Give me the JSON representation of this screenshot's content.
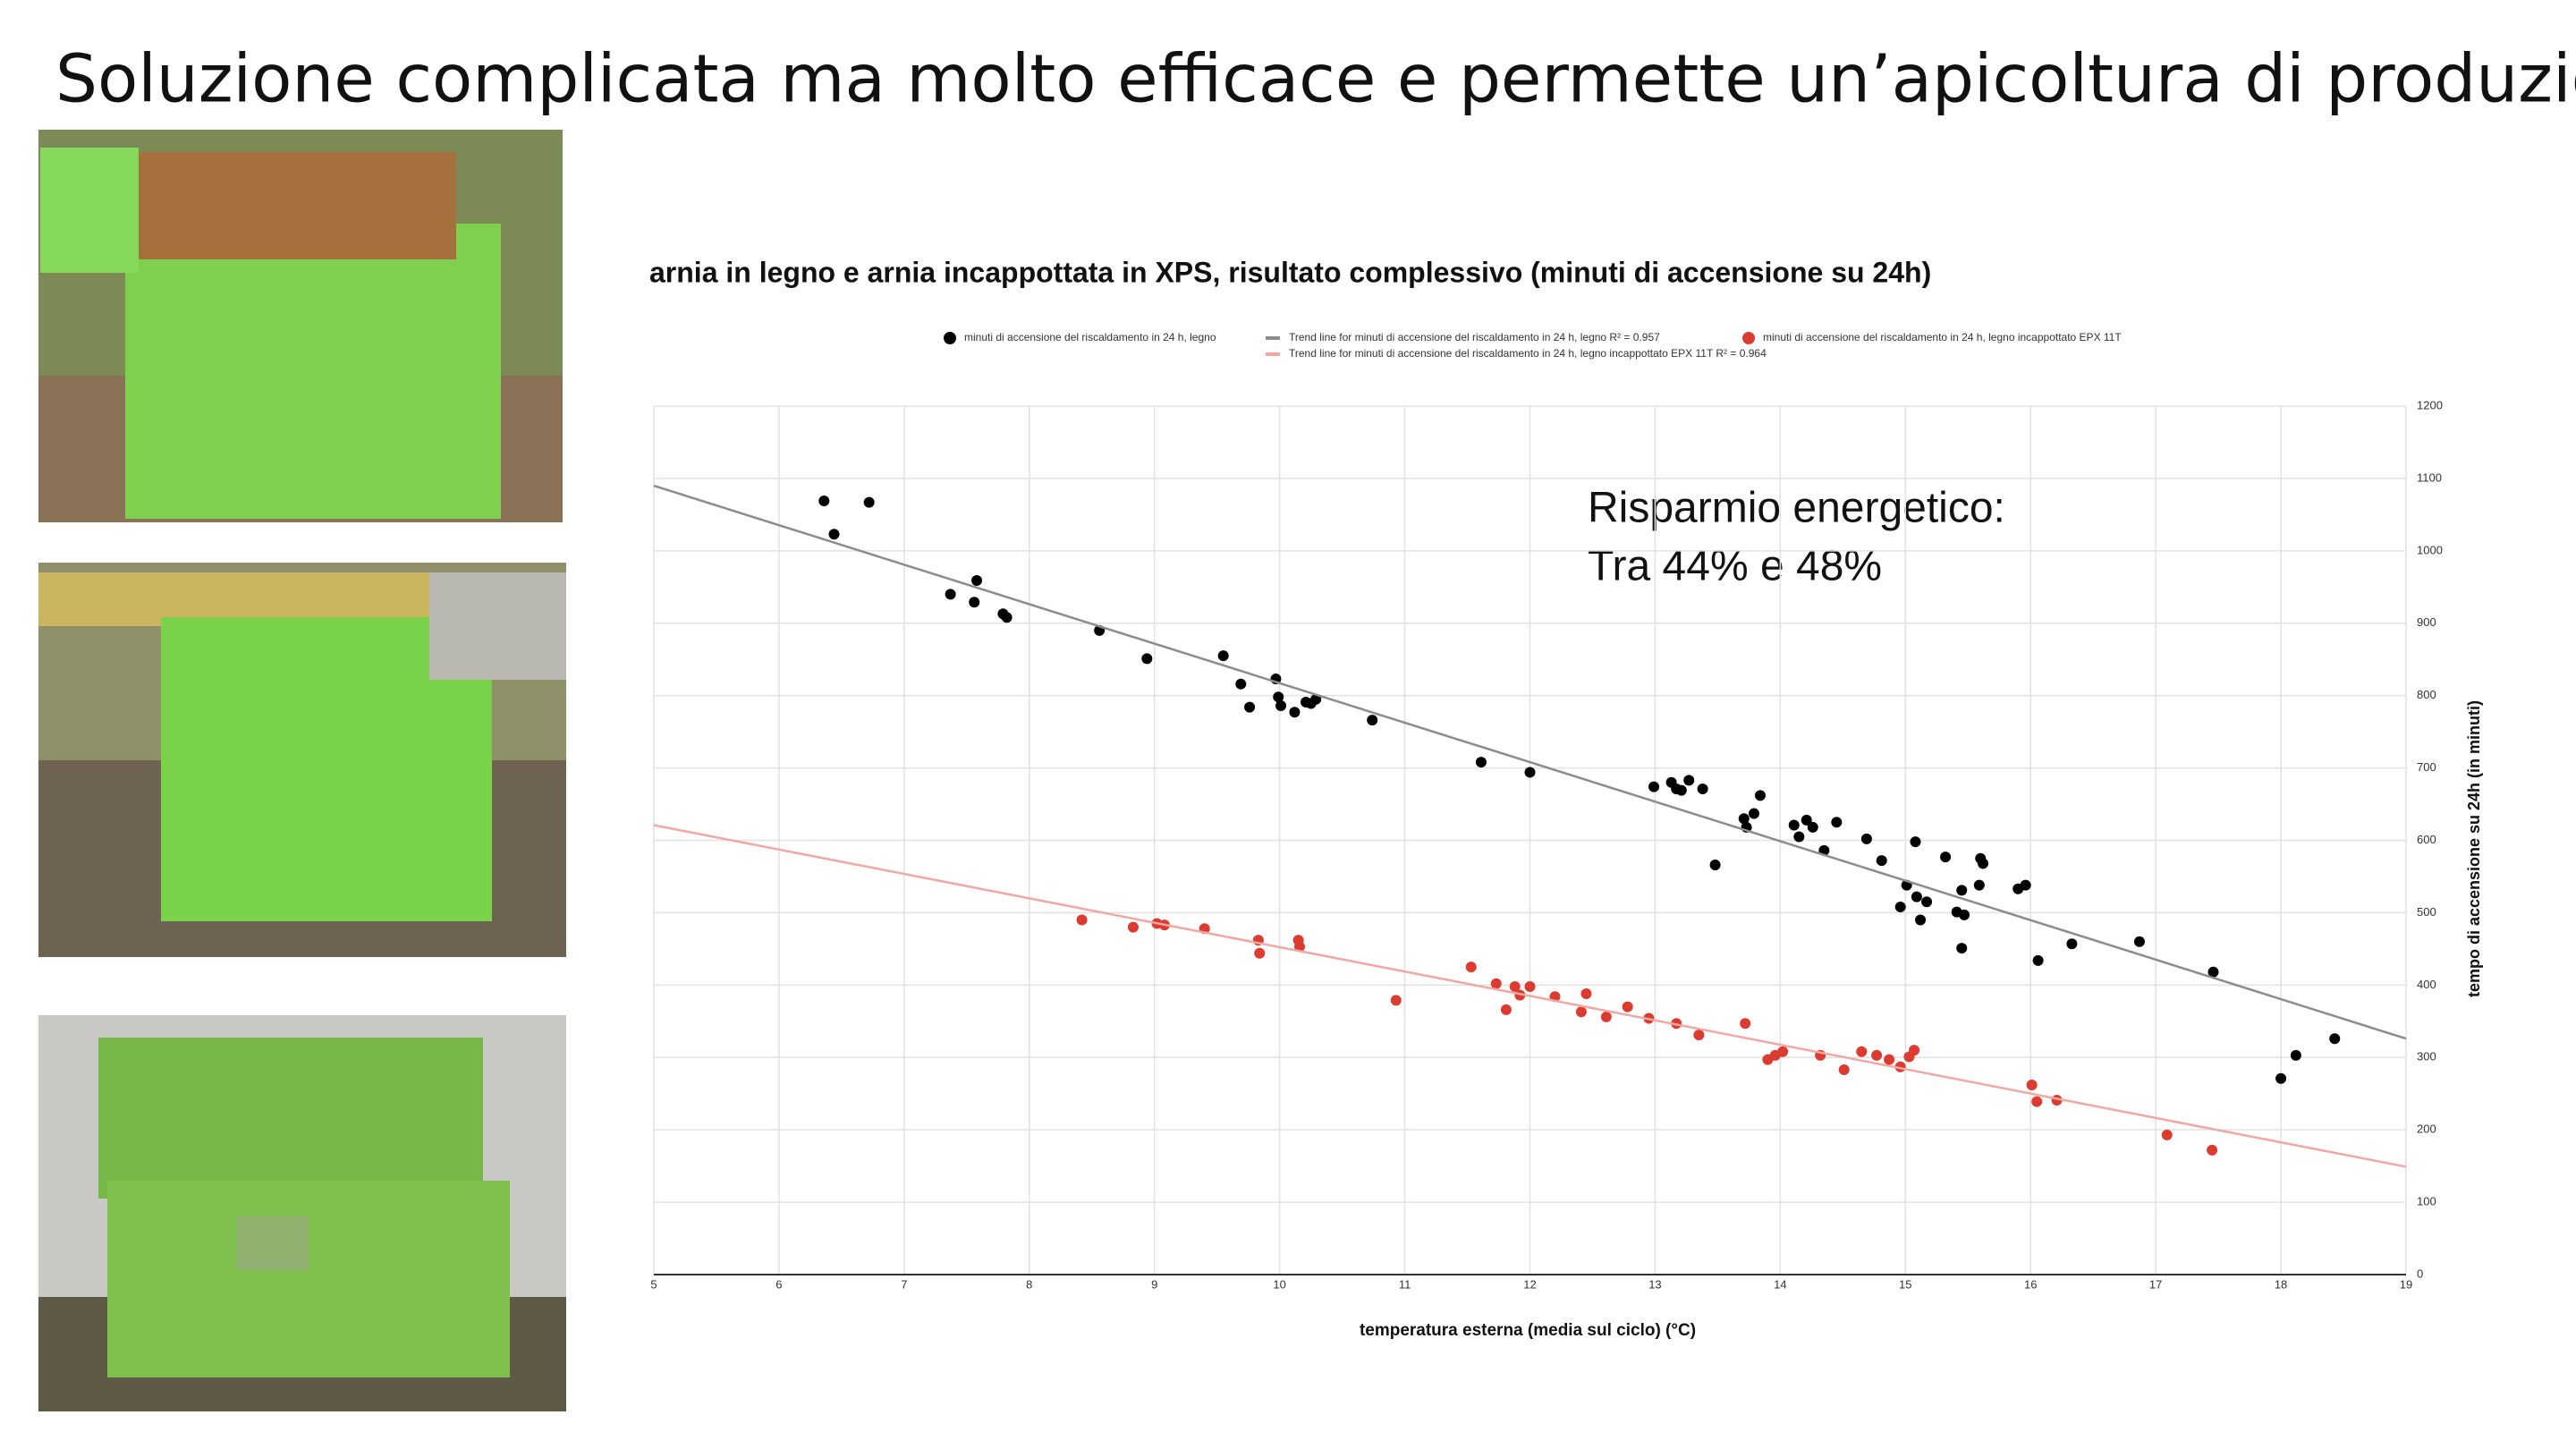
{
  "slide_title": "Soluzione complicata ma molto efficace e permette un’apicoltura di produzione",
  "chart_data": {
    "type": "scatter",
    "title": "arnia in legno e arnia incappottata in XPS, risultato complessivo (minuti di accensione su 24h)",
    "x_label": "temperatura esterna (media sul ciclo) (°C)",
    "y_label": "tempo di accensione su 24h (in minuti)",
    "annotation": [
      "Risparmio energetico:",
      "Tra 44% e 48%"
    ],
    "xlim": [
      5,
      19
    ],
    "xticks": [
      5,
      6,
      7,
      8,
      9,
      10,
      11,
      12,
      13,
      14,
      15,
      16,
      17,
      18,
      19
    ],
    "ylim": [
      0,
      1200
    ],
    "yticks": [
      0,
      100,
      200,
      300,
      400,
      500,
      600,
      700,
      800,
      900,
      1000,
      1100,
      1200
    ],
    "grid": true,
    "y_axis_side": "right",
    "series": [
      {
        "name": "minuti di accensione del riscaldamento in 24 h, legno",
        "color": "#000000",
        "type": "scatter",
        "x": [
          6.36,
          6.44,
          6.72,
          7.37,
          7.56,
          7.58,
          7.79,
          7.82,
          8.56,
          8.94,
          9.55,
          9.69,
          9.76,
          9.97,
          9.99,
          10.01,
          10.12,
          10.21,
          10.25,
          10.29,
          10.74,
          11.61,
          12.0,
          12.99,
          13.13,
          13.17,
          13.21,
          13.27,
          13.38,
          13.48,
          13.71,
          13.73,
          13.79,
          13.84,
          14.11,
          14.15,
          14.21,
          14.26,
          14.35,
          14.45,
          14.69,
          14.81,
          14.96,
          15.01,
          15.08,
          15.09,
          15.12,
          15.17,
          15.32,
          15.41,
          15.45,
          15.45,
          15.47,
          15.59,
          15.6,
          15.62,
          15.9,
          15.96,
          16.06,
          16.33,
          16.87,
          17.46,
          18.0,
          18.12,
          18.43
        ],
        "values": [
          1069,
          1023,
          1067,
          940,
          929,
          959,
          913,
          908,
          890,
          851,
          855,
          816,
          784,
          823,
          798,
          786,
          777,
          791,
          789,
          795,
          766,
          708,
          694,
          674,
          680,
          671,
          669,
          683,
          671,
          566,
          630,
          618,
          637,
          662,
          621,
          605,
          628,
          618,
          586,
          625,
          602,
          572,
          508,
          538,
          598,
          522,
          490,
          515,
          577,
          501,
          531,
          451,
          497,
          538,
          575,
          568,
          533,
          538,
          434,
          457,
          460,
          418,
          271,
          303,
          326
        ]
      },
      {
        "name": "Trend line for minuti di accensione del riscaldamento in 24 h, legno R² = 0.957",
        "color": "#8c8c8c",
        "type": "line",
        "x": [
          5,
          19
        ],
        "values": [
          1090,
          326
        ]
      },
      {
        "name": "minuti di accensione del riscaldamento in 24 h, legno incappottato EPX  11T",
        "color": "#dc3b30",
        "type": "scatter",
        "x": [
          8.42,
          8.83,
          9.02,
          9.08,
          9.4,
          9.83,
          9.84,
          10.15,
          10.16,
          10.93,
          11.53,
          11.73,
          11.81,
          11.88,
          11.92,
          12.0,
          12.2,
          12.41,
          12.45,
          12.61,
          12.78,
          12.95,
          13.17,
          13.35,
          13.72,
          13.9,
          13.96,
          14.02,
          14.32,
          14.51,
          14.65,
          14.77,
          14.87,
          14.96,
          15.03,
          15.07,
          16.01,
          16.05,
          16.21,
          17.09,
          17.45
        ],
        "values": [
          490,
          480,
          485,
          483,
          478,
          462,
          444,
          462,
          453,
          379,
          425,
          402,
          366,
          398,
          386,
          398,
          384,
          363,
          388,
          356,
          370,
          354,
          347,
          331,
          347,
          297,
          303,
          308,
          303,
          283,
          308,
          303,
          297,
          287,
          301,
          310,
          262,
          239,
          241,
          193,
          172
        ]
      },
      {
        "name": "Trend line for minuti di accensione del riscaldamento in 24 h, legno incappottato EPX  11T  R² = 0.964",
        "color": "#f0a8a3",
        "type": "line",
        "x": [
          5,
          19
        ],
        "values": [
          621,
          149
        ]
      }
    ]
  }
}
